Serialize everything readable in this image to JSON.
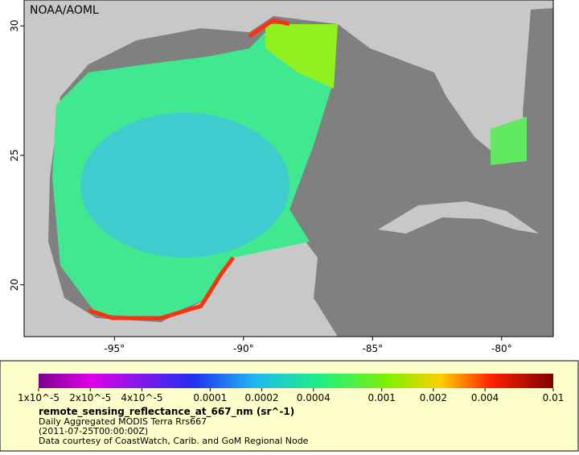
{
  "map": {
    "credit": "NOAA/AOML",
    "xlim": [
      -98.5,
      -78
    ],
    "ylim": [
      18,
      31
    ],
    "xticks": [
      {
        "value": -95,
        "label": "-95°"
      },
      {
        "value": -90,
        "label": "-90°"
      },
      {
        "value": -85,
        "label": "-85°"
      },
      {
        "value": -80,
        "label": "-80°"
      }
    ],
    "yticks": [
      20,
      25,
      30
    ]
  },
  "colorbar": {
    "scale": "log",
    "range": [
      1e-05,
      0.01
    ],
    "ticks": [
      {
        "value": 1e-05,
        "label": "1x10^-5"
      },
      {
        "value": 2e-05,
        "label": "2x10^-5"
      },
      {
        "value": 4e-05,
        "label": "4x10^-5"
      },
      0.0001,
      0.0002,
      0.0004,
      0.001,
      0.002,
      0.004,
      0.01
    ]
  },
  "legend": {
    "variable": "remote_sensing_reflectance_at_667_nm (sr^-1)",
    "lines": [
      "Daily Aggregated MODIS Terra Rrs667",
      "(2011-07-25T00:00:00Z)",
      "Data courtesy of CoastWatch, Carib. and GoM Regional Node"
    ]
  }
}
